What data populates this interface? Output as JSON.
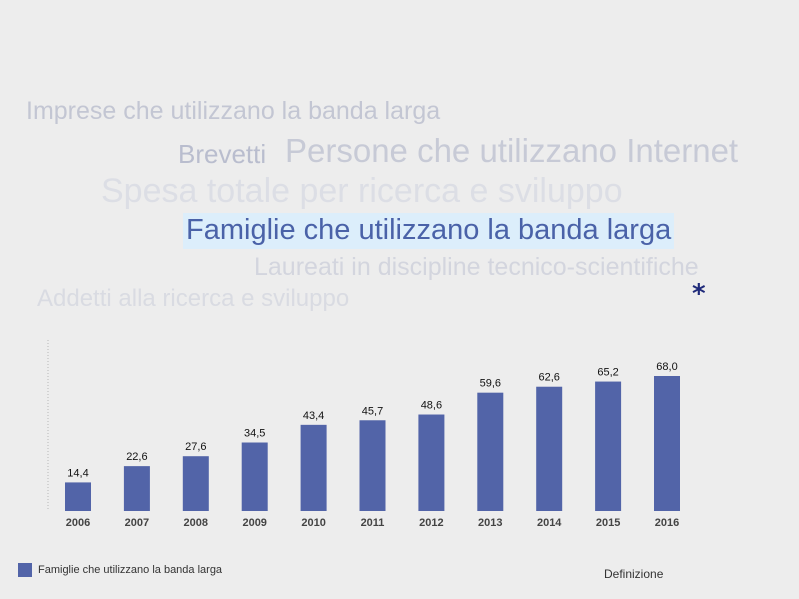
{
  "word_cloud": [
    "Imprese che utilizzano la banda larga",
    "Brevetti",
    "Persone che utilizzano Internet",
    "Spesa totale per ricerca e sviluppo",
    "Famiglie che utilizzano la banda larga",
    "Laureati in discipline tecnico-scientifiche",
    "Addetti alla ricerca e sviluppo"
  ],
  "selected_word": "Famiglie che utilizzano la banda larga",
  "asterisk": "*",
  "definition_link": "Definizione",
  "legend": {
    "label": "Famiglie che utilizzano la banda larga",
    "color": "#5264a8"
  },
  "chart_data": {
    "type": "bar",
    "categories": [
      "2006",
      "2007",
      "2008",
      "2009",
      "2010",
      "2011",
      "2012",
      "2013",
      "2014",
      "2015",
      "2016"
    ],
    "values": [
      14.4,
      22.6,
      27.6,
      34.5,
      43.4,
      45.7,
      48.6,
      59.6,
      62.6,
      65.2,
      68.0
    ],
    "value_labels": [
      "14,4",
      "22,6",
      "27,6",
      "34,5",
      "43,4",
      "45,7",
      "48,6",
      "59,6",
      "62,6",
      "65,2",
      "68,0"
    ],
    "series": [
      {
        "name": "Famiglie che utilizzano la banda larga",
        "values": [
          14.4,
          22.6,
          27.6,
          34.5,
          43.4,
          45.7,
          48.6,
          59.6,
          62.6,
          65.2,
          68.0
        ]
      }
    ],
    "ylim": [
      0,
      80
    ],
    "grid": false,
    "legend_position": "bottom-left",
    "bar_color": "#5264a8"
  }
}
